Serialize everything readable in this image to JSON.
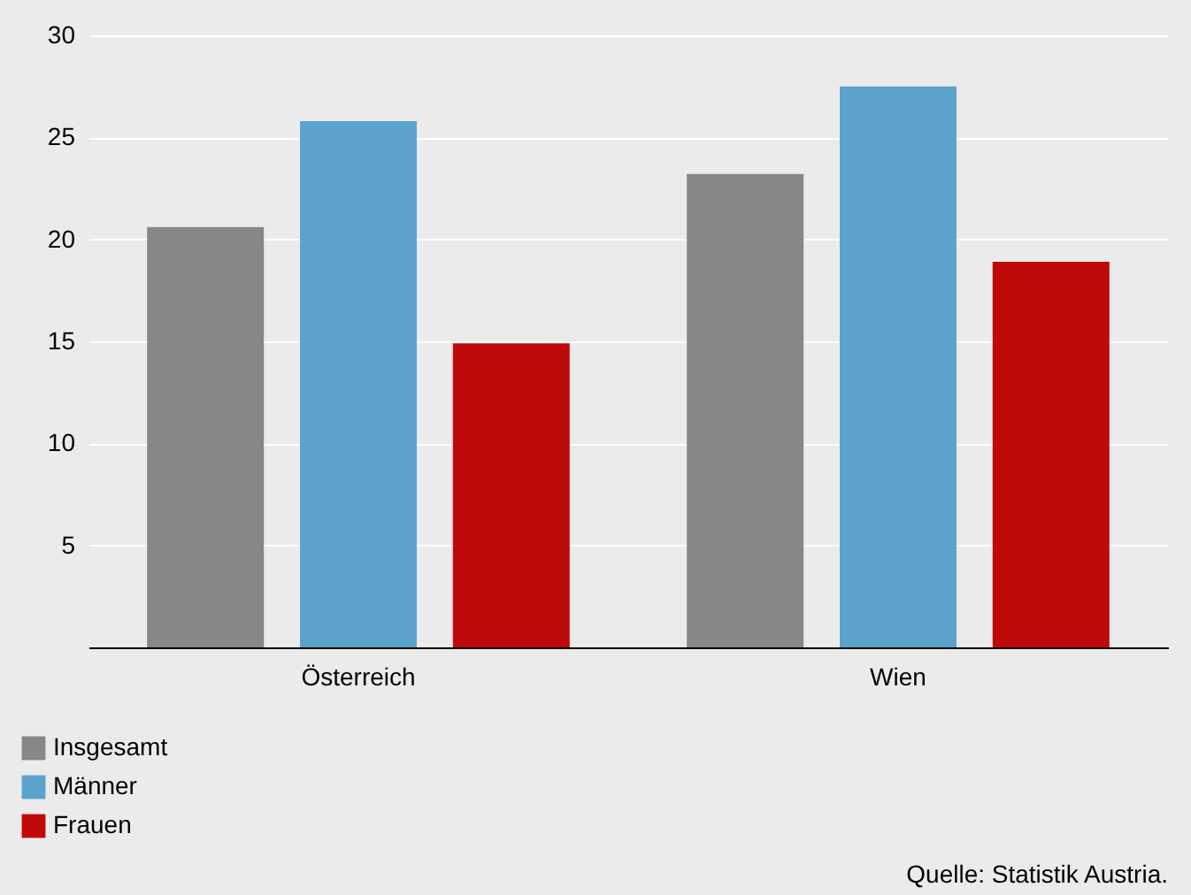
{
  "chart_data": {
    "type": "bar",
    "categories": [
      "Österreich",
      "Wien"
    ],
    "series": [
      {
        "name": "Insgesamt",
        "color": "#878786",
        "values": [
          20.6,
          23.2
        ]
      },
      {
        "name": "Männer",
        "color": "#5ba3cc",
        "values": [
          25.8,
          27.5
        ]
      },
      {
        "name": "Frauen",
        "color": "#c00a0a",
        "values": [
          14.9,
          18.9
        ]
      }
    ],
    "ylim": [
      0,
      30
    ],
    "yticks": [
      5,
      10,
      15,
      20,
      25,
      30
    ],
    "grid": "y",
    "legend": "bottom left",
    "annotations": [
      "Quelle: Statistik Austria."
    ]
  }
}
